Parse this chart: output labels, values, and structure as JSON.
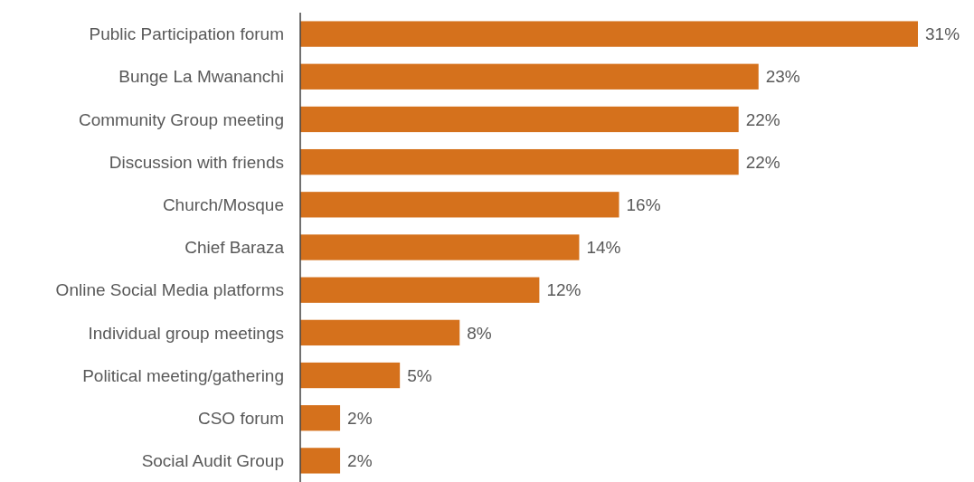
{
  "chart_data": {
    "type": "bar",
    "orientation": "horizontal",
    "categories": [
      "Public Participation forum",
      "Bunge La Mwananchi",
      "Community Group meeting",
      "Discussion with friends",
      "Church/Mosque",
      "Chief Baraza",
      "Online Social Media platforms",
      "Individual group meetings",
      "Political meeting/gathering",
      "CSO forum",
      "Social Audit Group"
    ],
    "values": [
      31,
      23,
      22,
      22,
      16,
      14,
      12,
      8,
      5,
      2,
      2
    ],
    "value_labels": [
      "31%",
      "23%",
      "22%",
      "22%",
      "16%",
      "14%",
      "12%",
      "8%",
      "5%",
      "2%",
      "2%"
    ],
    "color": "#d5711c"
  }
}
